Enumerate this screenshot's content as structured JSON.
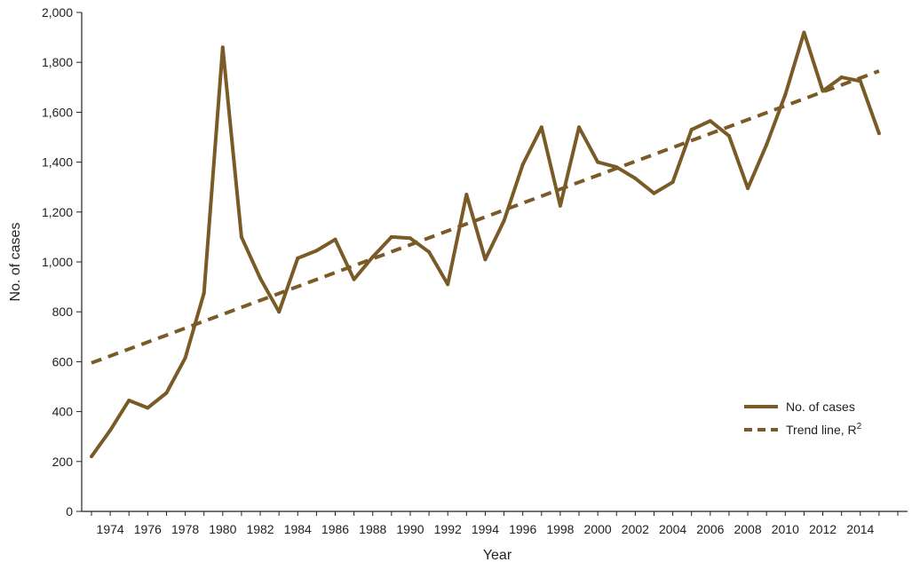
{
  "chart_data": {
    "type": "line",
    "title": "",
    "xlabel": "Year",
    "ylabel": "No. of cases",
    "xlim": [
      1973,
      2016
    ],
    "ylim": [
      0,
      2000
    ],
    "grid": false,
    "legend_position": "bottom-right",
    "x_ticks": [
      1974,
      1976,
      1978,
      1980,
      1982,
      1984,
      1986,
      1988,
      1990,
      1992,
      1994,
      1996,
      1998,
      2000,
      2002,
      2004,
      2006,
      2008,
      2010,
      2012,
      2014
    ],
    "y_ticks": [
      {
        "value": 0,
        "label": "0"
      },
      {
        "value": 200,
        "label": "200"
      },
      {
        "value": 400,
        "label": "400"
      },
      {
        "value": 600,
        "label": "600"
      },
      {
        "value": 800,
        "label": "800"
      },
      {
        "value": 1000,
        "label": "1,000"
      },
      {
        "value": 1200,
        "label": "1,200"
      },
      {
        "value": 1400,
        "label": "1,400"
      },
      {
        "value": 1600,
        "label": "1,600"
      },
      {
        "value": 1800,
        "label": "1,800"
      },
      {
        "value": 2000,
        "label": "2,000"
      }
    ],
    "colors": {
      "series": "#7a5a26",
      "axis": "#222222"
    },
    "series": [
      {
        "name": "No. of cases",
        "style": "solid",
        "x": [
          1973,
          1974,
          1975,
          1976,
          1977,
          1978,
          1979,
          1980,
          1981,
          1982,
          1983,
          1984,
          1985,
          1986,
          1987,
          1988,
          1989,
          1990,
          1991,
          1992,
          1993,
          1994,
          1995,
          1996,
          1997,
          1998,
          1999,
          2000,
          2001,
          2002,
          2003,
          2004,
          2005,
          2006,
          2007,
          2008,
          2009,
          2010,
          2011,
          2012,
          2013,
          2014,
          2015
        ],
        "values": [
          220,
          325,
          445,
          415,
          475,
          615,
          875,
          1860,
          1100,
          935,
          800,
          1015,
          1045,
          1090,
          930,
          1020,
          1100,
          1095,
          1040,
          910,
          1270,
          1010,
          1165,
          1390,
          1540,
          1225,
          1540,
          1400,
          1380,
          1335,
          1275,
          1320,
          1530,
          1565,
          1505,
          1295,
          1470,
          1670,
          1920,
          1685,
          1740,
          1725,
          1515
        ]
      },
      {
        "name": "Trend line, R",
        "name_superscript": "2",
        "style": "dashed",
        "x": [
          1973,
          2015
        ],
        "values": [
          595,
          1765
        ]
      }
    ]
  }
}
